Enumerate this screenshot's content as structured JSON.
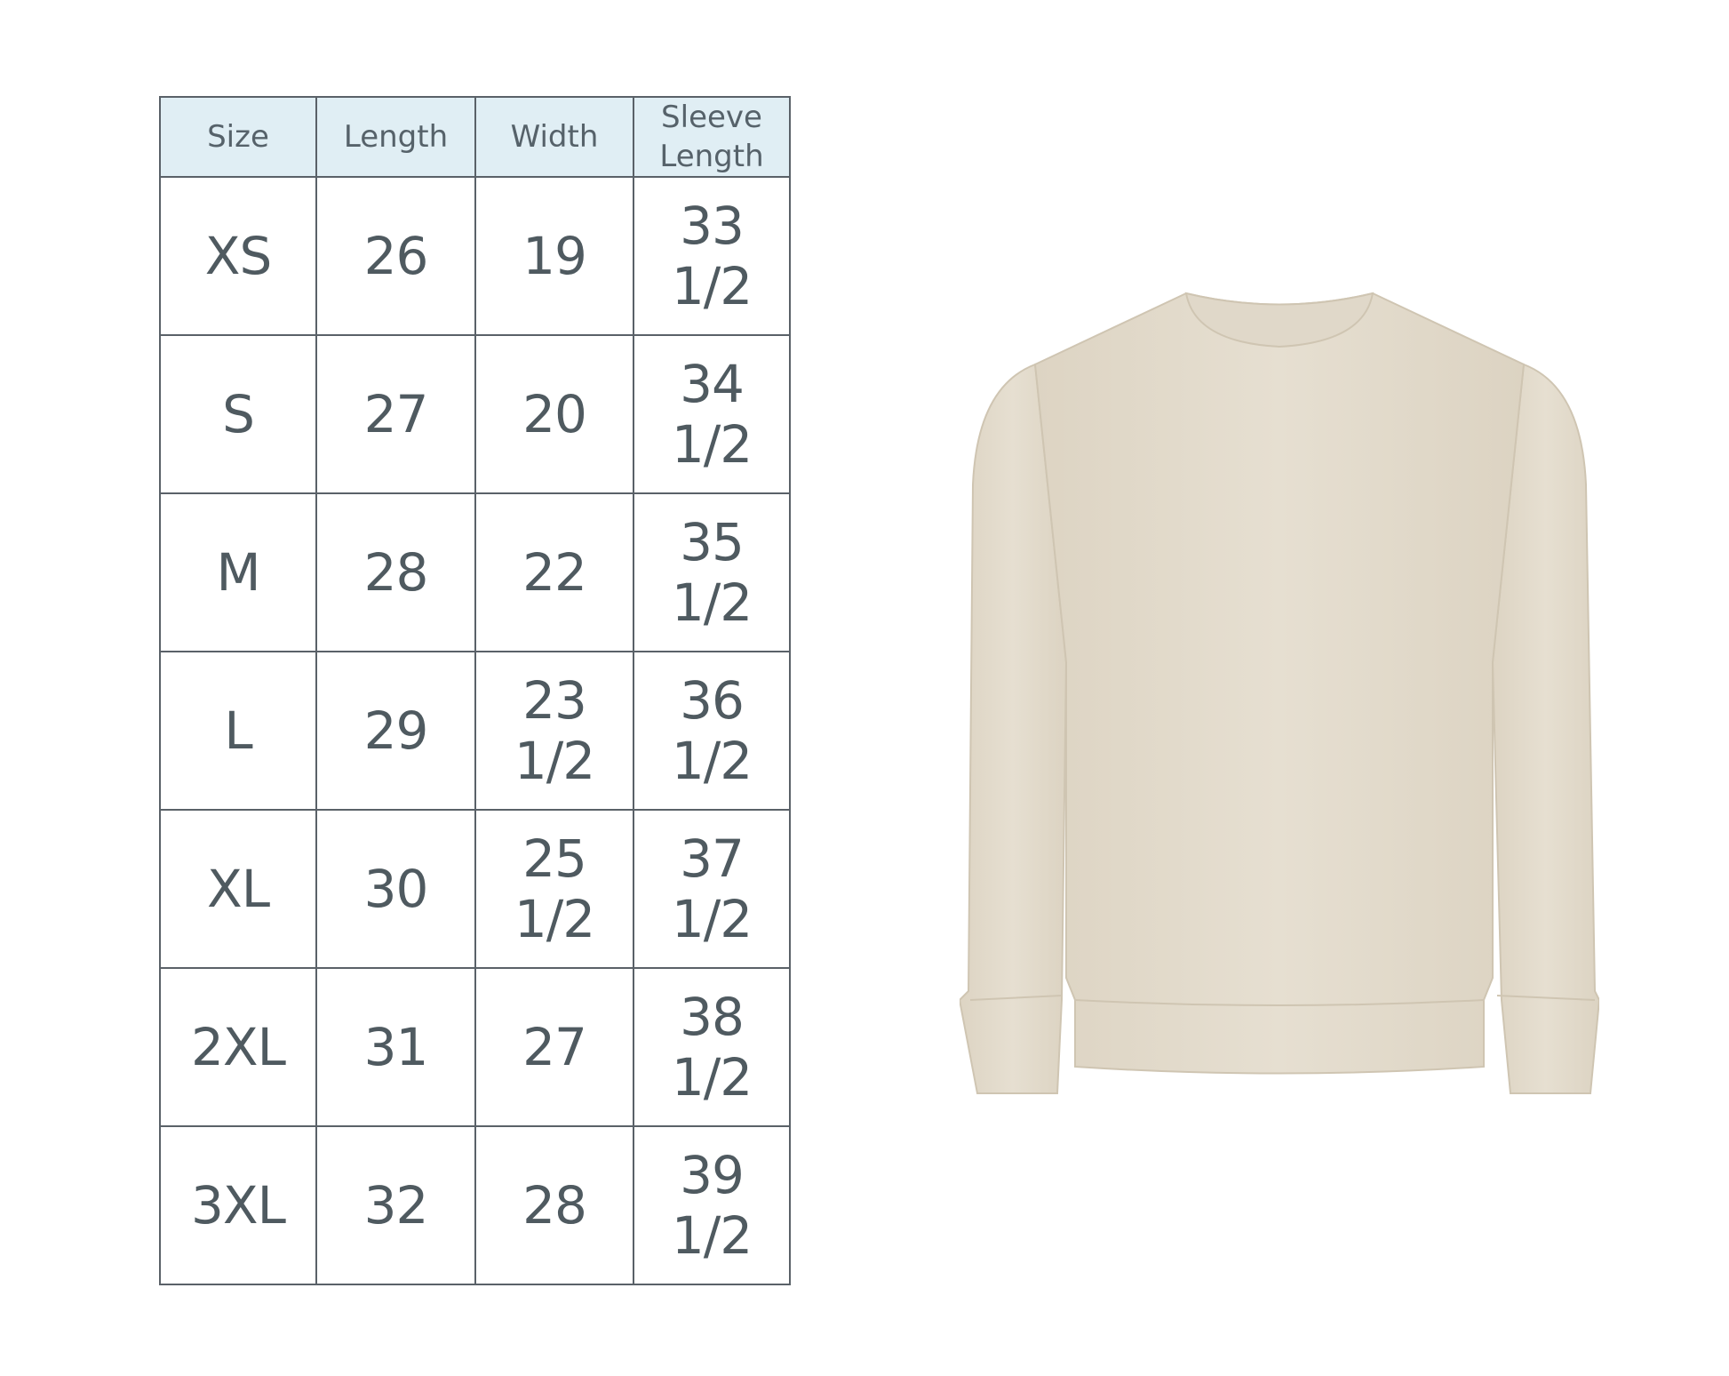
{
  "size_chart": {
    "headers": [
      "Size",
      "Length",
      "Width",
      "Sleeve Length"
    ],
    "rows": [
      [
        "XS",
        "26",
        "19",
        "33 1/2"
      ],
      [
        "S",
        "27",
        "20",
        "34 1/2"
      ],
      [
        "M",
        "28",
        "22",
        "35 1/2"
      ],
      [
        "L",
        "29",
        "23 1/2",
        "36 1/2"
      ],
      [
        "XL",
        "30",
        "25 1/2",
        "37 1/2"
      ],
      [
        "2XL",
        "31",
        "27",
        "38 1/2"
      ],
      [
        "3XL",
        "32",
        "28",
        "39 1/2"
      ]
    ]
  },
  "colors": {
    "header_bg": "#e0eef4",
    "text": "#4f5a60",
    "border": "#5a6168",
    "sweater": "#e4dccd"
  },
  "product_image": {
    "icon": "crewneck-sweatshirt-image"
  }
}
